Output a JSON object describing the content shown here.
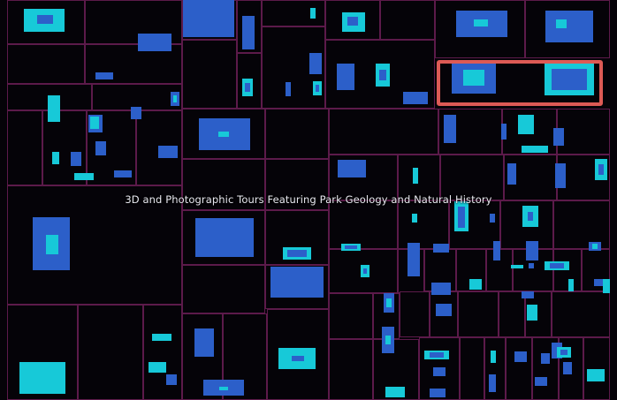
{
  "caption": "3D and Photographic Tours Featuring Park Geology and Natural History",
  "colors": {
    "background": "#050308",
    "cell_border": "#5c1a4a",
    "tile_dark": "#2c5fc9",
    "tile_light": "#17c9d8",
    "highlight": "#dd5a55"
  }
}
